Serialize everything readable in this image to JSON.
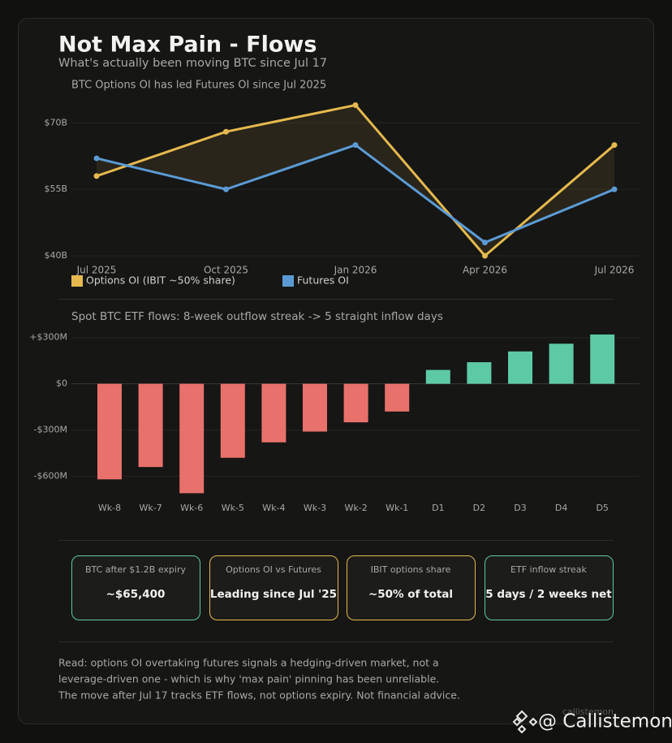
{
  "header": {
    "title": "Not Max Pain - Flows",
    "subtitle": "What's actually been moving BTC since Jul 17"
  },
  "chart_data": [
    {
      "type": "line",
      "title": "BTC Options OI has led Futures OI since Jul 2025",
      "categories": [
        "Jul 2025",
        "Oct 2025",
        "Jan 2026",
        "Apr 2026",
        "Jul 2026"
      ],
      "series": [
        {
          "name": "Options OI (IBIT ~50% share)",
          "color": "#e5b94e",
          "values": [
            58,
            68,
            74,
            40,
            65
          ]
        },
        {
          "name": "Futures OI",
          "color": "#5b9bd5",
          "values": [
            62,
            55,
            65,
            43,
            55
          ]
        }
      ],
      "ylim": [
        40,
        75
      ],
      "yticks": [
        {
          "value": 40,
          "label": "$40B"
        },
        {
          "value": 55,
          "label": "$55B"
        },
        {
          "value": 70,
          "label": "$70B"
        }
      ],
      "grid": true,
      "legend": "bottom-left"
    },
    {
      "type": "bar",
      "title": "Spot BTC ETF flows: 8-week outflow streak -> 5 straight inflow days",
      "categories": [
        "Wk-8",
        "Wk-7",
        "Wk-6",
        "Wk-5",
        "Wk-4",
        "Wk-3",
        "Wk-2",
        "Wk-1",
        "D1",
        "D2",
        "D3",
        "D4",
        "D5"
      ],
      "values": [
        -620,
        -540,
        -710,
        -480,
        -380,
        -310,
        -250,
        -180,
        90,
        140,
        210,
        260,
        320
      ],
      "positive_color": "#5dcaa5",
      "negative_color": "#e8716b",
      "ylim": [
        -750,
        330
      ],
      "yticks": [
        {
          "value": -600,
          "label": "-$600M"
        },
        {
          "value": -300,
          "label": "-$300M"
        },
        {
          "value": 0,
          "label": "$0"
        },
        {
          "value": 300,
          "label": "+$300M"
        }
      ],
      "grid": true
    }
  ],
  "cards": [
    {
      "label": "BTC after $1.2B expiry",
      "value": "~$65,400",
      "border_color": "#5dcaa5"
    },
    {
      "label": "Options OI vs Futures",
      "value": "Leading since Jul '25",
      "border_color": "#e5b94e"
    },
    {
      "label": "IBIT options share",
      "value": "~50% of total",
      "border_color": "#e5b94e"
    },
    {
      "label": "ETF inflow streak",
      "value": "5 days / 2 weeks net",
      "border_color": "#5dcaa5"
    }
  ],
  "note": [
    "Read: options OI overtaking futures signals a hedging-driven market, not a",
    "leverage-driven one - which is why 'max pain' pinning has been unreliable.",
    "The move after Jul 17 tracks ETF flows, not options expiry. Not financial advice."
  ],
  "watermark": {
    "small": "callistemon",
    "handle": "@ Callistemon"
  }
}
